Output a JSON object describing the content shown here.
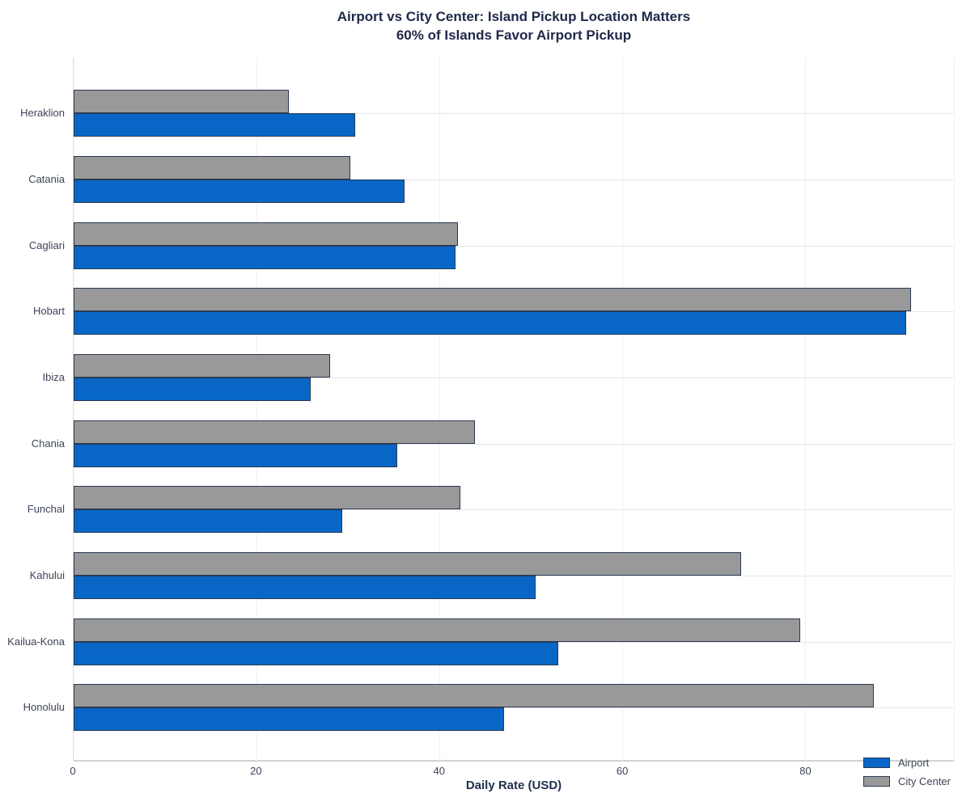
{
  "title": {
    "line1": "Airport vs City Center: Island Pickup Location Matters",
    "line2": "60% of Islands Favor Airport Pickup"
  },
  "chart_data": {
    "type": "bar",
    "orientation": "horizontal",
    "title": "Airport vs City Center: Island Pickup Location Matters",
    "subtitle": "60% of Islands Favor Airport Pickup",
    "xlabel": "Daily Rate (USD)",
    "ylabel": "",
    "categories": [
      "Heraklion",
      "Catania",
      "Cagliari",
      "Hobart",
      "Ibiza",
      "Chania",
      "Funchal",
      "Kahului",
      "Kailua-Kona",
      "Honolulu"
    ],
    "series": [
      {
        "name": "Airport",
        "color": "#0866C6",
        "values": [
          30.8,
          36.2,
          41.8,
          91.1,
          25.9,
          35.4,
          29.4,
          50.5,
          53.0,
          47.1
        ]
      },
      {
        "name": "City Center",
        "color": "#999999",
        "values": [
          23.5,
          30.3,
          42.0,
          91.6,
          28.1,
          43.9,
          42.3,
          73.0,
          79.5,
          87.5
        ]
      }
    ],
    "bar_top_to_bottom": [
      "City Center",
      "Airport"
    ],
    "bar_border_color": "#2a3a52",
    "x_ticks": [
      0,
      20,
      40,
      60,
      80
    ],
    "xlim": [
      0,
      96.3
    ],
    "grid": true,
    "legend_position": "bottom-right"
  },
  "colors": {
    "airport": "#0866C6",
    "city_center": "#999999",
    "bar_border": "#2a3a52",
    "title_text": "#20294a",
    "tick_text": "#3d4357",
    "gridline": "#e6e6e6"
  }
}
